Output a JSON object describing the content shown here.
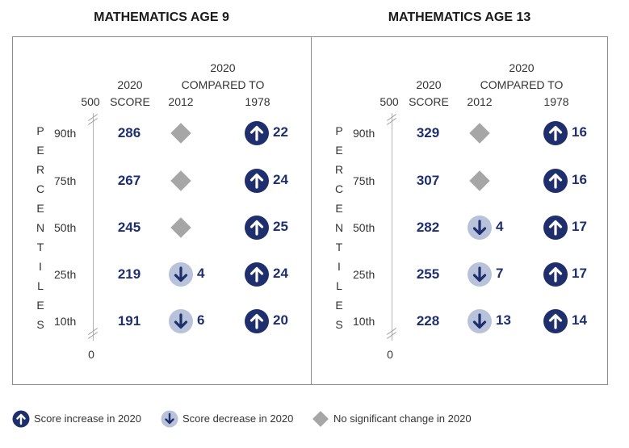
{
  "chart_data": [
    {
      "type": "table",
      "title": "MATHEMATICS AGE 9",
      "header_top": "2020",
      "header_compared": "COMPARED TO",
      "score_header_1": "2020",
      "score_header_2": "SCORE",
      "year_a": "2012",
      "year_b": "1978",
      "axis_top": "500",
      "axis_bottom": "0",
      "vertical_label": [
        "P",
        "E",
        "R",
        "C",
        "E",
        "N",
        "T",
        "I",
        "L",
        "E",
        "S"
      ],
      "rows": [
        {
          "percentile": "90th",
          "score": "286",
          "vs_2012": {
            "status": "none",
            "change": ""
          },
          "vs_1978": {
            "status": "up",
            "change": "22"
          }
        },
        {
          "percentile": "75th",
          "score": "267",
          "vs_2012": {
            "status": "none",
            "change": ""
          },
          "vs_1978": {
            "status": "up",
            "change": "24"
          }
        },
        {
          "percentile": "50th",
          "score": "245",
          "vs_2012": {
            "status": "none",
            "change": ""
          },
          "vs_1978": {
            "status": "up",
            "change": "25"
          }
        },
        {
          "percentile": "25th",
          "score": "219",
          "vs_2012": {
            "status": "down",
            "change": "4"
          },
          "vs_1978": {
            "status": "up",
            "change": "24"
          }
        },
        {
          "percentile": "10th",
          "score": "191",
          "vs_2012": {
            "status": "down",
            "change": "6"
          },
          "vs_1978": {
            "status": "up",
            "change": "20"
          }
        }
      ]
    },
    {
      "type": "table",
      "title": "MATHEMATICS AGE 13",
      "header_top": "2020",
      "header_compared": "COMPARED TO",
      "score_header_1": "2020",
      "score_header_2": "SCORE",
      "year_a": "2012",
      "year_b": "1978",
      "axis_top": "500",
      "axis_bottom": "0",
      "vertical_label": [
        "P",
        "E",
        "R",
        "C",
        "E",
        "N",
        "T",
        "I",
        "L",
        "E",
        "S"
      ],
      "rows": [
        {
          "percentile": "90th",
          "score": "329",
          "vs_2012": {
            "status": "none",
            "change": ""
          },
          "vs_1978": {
            "status": "up",
            "change": "16"
          }
        },
        {
          "percentile": "75th",
          "score": "307",
          "vs_2012": {
            "status": "none",
            "change": ""
          },
          "vs_1978": {
            "status": "up",
            "change": "16"
          }
        },
        {
          "percentile": "50th",
          "score": "282",
          "vs_2012": {
            "status": "down",
            "change": "4"
          },
          "vs_1978": {
            "status": "up",
            "change": "17"
          }
        },
        {
          "percentile": "25th",
          "score": "255",
          "vs_2012": {
            "status": "down",
            "change": "7"
          },
          "vs_1978": {
            "status": "up",
            "change": "17"
          }
        },
        {
          "percentile": "10th",
          "score": "228",
          "vs_2012": {
            "status": "down",
            "change": "13"
          },
          "vs_1978": {
            "status": "up",
            "change": "14"
          }
        }
      ]
    }
  ],
  "legend": {
    "increase": "Score increase in 2020",
    "decrease": "Score decrease in 2020",
    "no_change": "No significant change in 2020"
  },
  "colors": {
    "navy": "#1f2f6e",
    "light_circle": "#b8c2da",
    "gray_diamond": "#a6a6a6",
    "border": "#8c8c8c"
  },
  "icons": {
    "up": "arrow-up-circle-icon",
    "down": "arrow-down-circle-icon",
    "none": "diamond-icon"
  }
}
